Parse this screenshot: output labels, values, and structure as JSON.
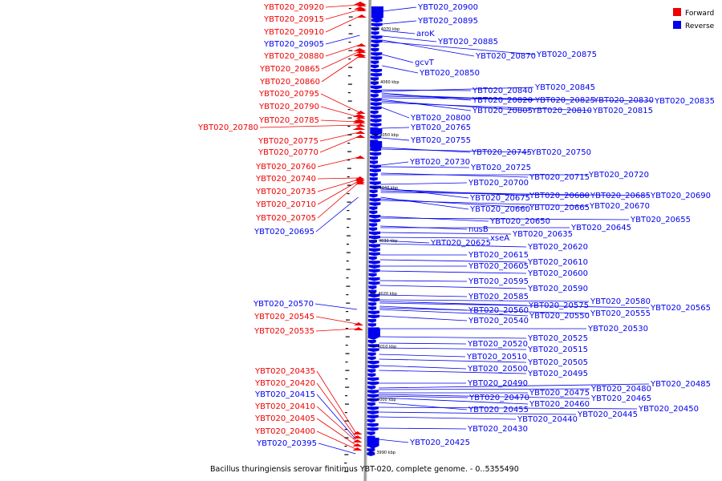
{
  "caption": "Bacillus thuringiensis serovar finitimus YBT-020, complete genome. - 0..5355490",
  "legend": [
    {
      "label": "Forward",
      "color": "#ee0000"
    },
    {
      "label": "Reverse",
      "color": "#0000ee"
    }
  ],
  "colors": {
    "forward": "#ee0000",
    "reverse": "#0000ee",
    "backbone": "#9a9a9a"
  },
  "ticks": [
    "4070 kbp",
    "4060 kbp",
    "4050 kbp",
    "4040 kbp",
    "4030 kbp",
    "4020 kbp",
    "4010 kbp",
    "4000 kbp",
    "3990 kbp"
  ],
  "forward_genes": [
    "YBT020_20920",
    "YBT020_20915",
    "YBT020_20910",
    "YBT020_20880",
    "YBT020_20865",
    "YBT020_20860",
    "YBT020_20795",
    "YBT020_20790",
    "YBT020_20785",
    "YBT020_20780",
    "YBT020_20775",
    "YBT020_20770",
    "YBT020_20760",
    "YBT020_20740",
    "YBT020_20735",
    "YBT020_20710",
    "YBT020_20705",
    "YBT020_20545",
    "YBT020_20535",
    "YBT020_20435",
    "YBT020_20420",
    "YBT020_20410",
    "YBT020_20405",
    "YBT020_20400"
  ],
  "left_reverse_genes": [
    "YBT020_20905",
    "YBT020_20695",
    "YBT020_20570",
    "YBT020_20415",
    "YBT020_20395"
  ],
  "reverse_genes": [
    "YBT020_20900",
    "YBT020_20895",
    "aroK",
    "YBT020_20885",
    "YBT020_20870",
    "YBT020_20875",
    "gcvT",
    "YBT020_20850",
    "YBT020_20840",
    "YBT020_20845",
    "YBT020_20820",
    "YBT020_20825",
    "YBT020_20830",
    "YBT020_20835",
    "YBT020_20805",
    "YBT020_20810",
    "YBT020_20815",
    "YBT020_20800",
    "YBT020_20765",
    "YBT020_20755",
    "YBT020_20745",
    "YBT020_20750",
    "YBT020_20730",
    "YBT020_20725",
    "YBT020_20715",
    "YBT020_20720",
    "YBT020_20700",
    "YBT020_20675",
    "YBT020_20680",
    "YBT020_20685",
    "YBT020_20690",
    "YBT020_20660",
    "YBT020_20665",
    "YBT020_20670",
    "YBT020_20650",
    "YBT020_20655",
    "nusB",
    "YBT020_20645",
    "YBT020_20635",
    "xseA",
    "YBT020_20625",
    "YBT020_20620",
    "YBT020_20615",
    "YBT020_20610",
    "YBT020_20605",
    "YBT020_20600",
    "YBT020_20595",
    "YBT020_20590",
    "YBT020_20585",
    "YBT020_20580",
    "YBT020_20575",
    "YBT020_20565",
    "YBT020_20560",
    "YBT020_20555",
    "YBT020_20550",
    "YBT020_20540",
    "YBT020_20530",
    "YBT020_20525",
    "YBT020_20520",
    "YBT020_20515",
    "YBT020_20510",
    "YBT020_20505",
    "YBT020_20500",
    "YBT020_20495",
    "YBT020_20490",
    "YBT020_20485",
    "YBT020_20480",
    "YBT020_20475",
    "YBT020_20465",
    "YBT020_20470",
    "YBT020_20460",
    "YBT020_20455",
    "YBT020_20450",
    "YBT020_20445",
    "YBT020_20440",
    "YBT020_20430",
    "YBT020_20425"
  ]
}
